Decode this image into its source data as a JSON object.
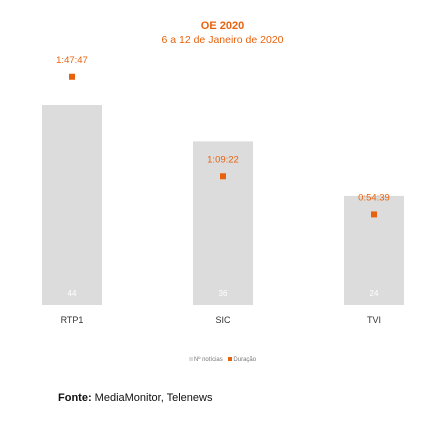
{
  "colors": {
    "bar": "#dcdcdc",
    "marker": "#e8620e",
    "title": "#e8620e",
    "bar_label": "#ffffff",
    "category_label": "#333333"
  },
  "legend": {
    "noticias": "Nº notícias",
    "duracao": "Duração"
  },
  "source": {
    "label": "Fonte:",
    "text": "MediaMonitor, Telenews"
  },
  "chart_data": {
    "type": "bar",
    "title": "OE 2020",
    "subtitle": "6 a 12 de Janeiro de 2020",
    "categories": [
      "RTP1",
      "SIC",
      "TVI"
    ],
    "series": [
      {
        "name": "Nº notícias",
        "type": "bar",
        "values": [
          44,
          36,
          24
        ],
        "labels": [
          "44",
          "36",
          "24"
        ]
      },
      {
        "name": "Duração",
        "type": "marker",
        "values": [
          "1:47:47",
          "1:09:22",
          "0:54:39"
        ],
        "labels": [
          "1:47:47",
          "1:09:22",
          "0:54:39"
        ]
      }
    ],
    "legend_position": "bottom",
    "grid": false
  }
}
